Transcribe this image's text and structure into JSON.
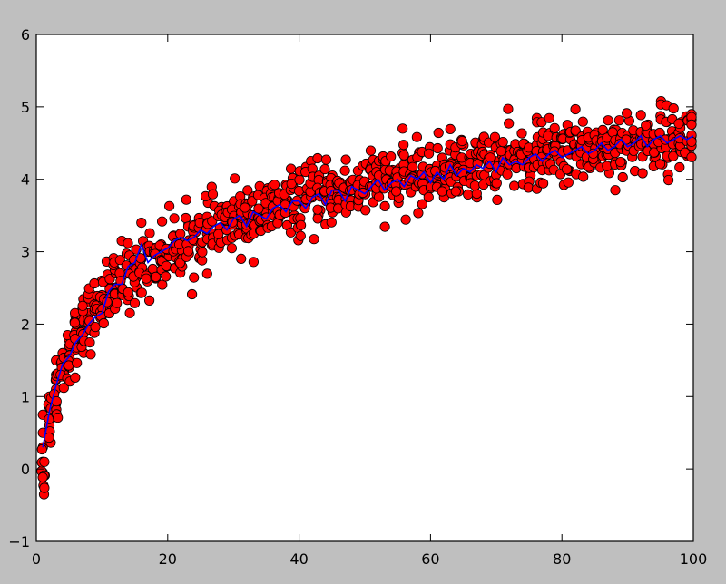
{
  "figure": {
    "background_color": "#bfbfbf"
  },
  "chart_data": {
    "type": "scatter",
    "title": "",
    "xlabel": "",
    "ylabel": "",
    "xlim": [
      0,
      100
    ],
    "ylim": [
      -1,
      6
    ],
    "grid": false,
    "legend": "none",
    "xticks": [
      0,
      20,
      40,
      60,
      80,
      100
    ],
    "yticks": [
      -1,
      0,
      1,
      2,
      3,
      4,
      5,
      6
    ],
    "xtick_labels": [
      "0",
      "20",
      "40",
      "60",
      "80",
      "100"
    ],
    "ytick_labels": [
      "−1",
      "0",
      "1",
      "2",
      "3",
      "4",
      "5",
      "6"
    ],
    "series": [
      {
        "kind": "line",
        "color": "#0000ff",
        "x": [
          1,
          2,
          3,
          4,
          5,
          6,
          7,
          8,
          9,
          10,
          11,
          12,
          13,
          14,
          15,
          16,
          17,
          18,
          19,
          20,
          21,
          22,
          23,
          24,
          25,
          26,
          27,
          28,
          29,
          30,
          31,
          32,
          33,
          34,
          35,
          36,
          37,
          38,
          39,
          40,
          41,
          42,
          43,
          44,
          45,
          46,
          47,
          48,
          49,
          50,
          51,
          52,
          53,
          54,
          55,
          56,
          57,
          58,
          59,
          60,
          61,
          62,
          63,
          64,
          65,
          66,
          67,
          68,
          69,
          70,
          71,
          72,
          73,
          74,
          75,
          76,
          77,
          78,
          79,
          80,
          81,
          82,
          83,
          84,
          85,
          86,
          87,
          88,
          89,
          90,
          91,
          92,
          93,
          94,
          95,
          96,
          97,
          98,
          99,
          100
        ],
        "y": [
          0.3,
          0.8,
          1.15,
          1.45,
          1.55,
          1.75,
          1.85,
          2.0,
          2.1,
          2.15,
          2.45,
          2.55,
          2.55,
          2.8,
          2.85,
          3.1,
          2.85,
          2.95,
          3.0,
          3.05,
          3.15,
          3.2,
          3.15,
          3.2,
          3.3,
          3.25,
          3.35,
          3.4,
          3.3,
          3.45,
          3.5,
          3.35,
          3.55,
          3.5,
          3.45,
          3.6,
          3.65,
          3.55,
          3.7,
          3.7,
          3.6,
          3.75,
          3.8,
          3.65,
          3.85,
          3.85,
          3.7,
          3.9,
          3.85,
          3.8,
          3.9,
          4.0,
          3.85,
          3.95,
          4.0,
          3.9,
          4.05,
          4.0,
          4.1,
          3.95,
          4.1,
          4.0,
          4.2,
          4.05,
          4.15,
          4.1,
          4.2,
          4.15,
          4.25,
          4.1,
          4.3,
          4.2,
          4.25,
          4.2,
          4.3,
          4.35,
          4.25,
          4.35,
          4.4,
          4.3,
          4.35,
          4.4,
          4.45,
          4.35,
          4.4,
          4.5,
          4.4,
          4.45,
          4.55,
          4.45,
          4.5,
          4.6,
          4.45,
          4.55,
          4.6,
          4.5,
          4.55,
          4.6,
          4.55,
          4.6
        ]
      },
      {
        "kind": "scatter",
        "color": "#ff0000",
        "edgecolor": "#000000",
        "model": "y = ln(x) ± noise (≈ 0.25 sd, 10 samples per x)",
        "x": [
          1,
          1,
          1,
          1,
          1,
          2,
          2,
          2,
          3,
          3,
          3,
          3,
          4,
          4,
          4,
          5,
          5,
          5,
          5,
          6,
          6,
          6,
          6,
          7,
          7,
          7,
          8,
          8,
          8,
          9,
          9,
          10,
          10,
          11,
          11,
          12,
          12,
          13,
          13,
          14,
          15,
          16,
          16,
          17,
          18,
          19,
          20,
          21,
          22,
          24,
          26,
          28,
          30,
          32,
          35,
          38,
          40,
          42,
          45,
          48,
          50,
          52,
          55,
          58,
          60,
          63,
          66,
          70,
          72,
          75,
          78,
          80,
          82,
          85,
          88,
          90,
          92,
          95,
          98,
          100
        ],
        "y": [
          -0.05,
          0.1,
          0.3,
          0.5,
          0.75,
          0.6,
          0.85,
          1.0,
          0.9,
          1.1,
          1.3,
          1.5,
          1.3,
          1.45,
          1.6,
          1.4,
          1.55,
          1.7,
          1.8,
          1.65,
          1.75,
          1.9,
          2.0,
          1.9,
          2.05,
          2.2,
          2.0,
          2.15,
          2.3,
          2.2,
          2.35,
          2.4,
          2.6,
          2.3,
          2.55,
          2.5,
          2.75,
          2.5,
          3.15,
          2.7,
          2.8,
          3.4,
          2.9,
          3.0,
          3.05,
          3.1,
          3.0,
          3.05,
          3.1,
          3.15,
          3.25,
          3.3,
          3.4,
          3.45,
          3.55,
          3.6,
          3.7,
          3.75,
          3.8,
          3.85,
          3.9,
          3.95,
          4.0,
          4.05,
          4.1,
          4.15,
          4.2,
          4.25,
          4.3,
          4.3,
          4.35,
          4.4,
          4.4,
          4.45,
          4.5,
          4.5,
          4.55,
          4.55,
          4.6,
          4.6
        ]
      }
    ]
  }
}
